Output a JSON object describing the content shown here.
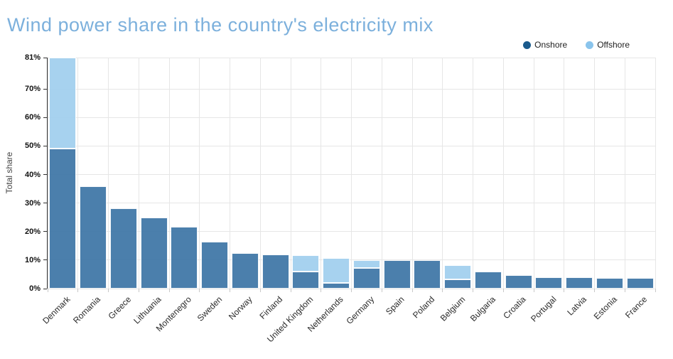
{
  "page": {
    "title": "Wind power share in the country's electricity mix"
  },
  "colors": {
    "title_text": "#7cb0dc",
    "grid_line": "#e6e6e6",
    "y_axis_line": "#333333",
    "x_axis_line": "#c9c9c9",
    "axis_text": "#111111"
  },
  "chart_data": {
    "type": "bar",
    "stacked": true,
    "title": "Wind power share in the country's electricity mix",
    "xlabel": "",
    "ylabel": "Total share",
    "ylim": [
      0,
      81
    ],
    "grid": true,
    "legend_position": "top-right",
    "categories": [
      "Denmark",
      "Romania",
      "Greece",
      "Lithuania",
      "Montenegro",
      "Sweden",
      "Norway",
      "Finland",
      "United Kingdom",
      "Netherlands",
      "Germany",
      "Spain",
      "Poland",
      "Belgium",
      "Bulgaria",
      "Croatia",
      "Portugal",
      "Latvia",
      "Estonia",
      "France"
    ],
    "series": [
      {
        "name": "Onshore",
        "legend_color": "#1a5a8c",
        "bar_fill": "#4279a8",
        "values": [
          49,
          35.8,
          28.2,
          24.9,
          21.7,
          16.4,
          12.4,
          12.0,
          6.0,
          2.0,
          7.3,
          10.0,
          9.9,
          3.3,
          6.0,
          4.8,
          4.0,
          4.0,
          3.8,
          3.7
        ]
      },
      {
        "name": "Offshore",
        "legend_color": "#8ac4ec",
        "bar_fill": "#a3d0ef",
        "values": [
          32,
          0,
          0,
          0,
          0,
          0,
          0,
          0,
          5.6,
          8.6,
          2.6,
          0,
          0,
          5.0,
          0,
          0,
          0,
          0,
          0,
          0
        ]
      }
    ],
    "yticks": [
      {
        "value": 0,
        "label": "0%"
      },
      {
        "value": 10,
        "label": "10%"
      },
      {
        "value": 20,
        "label": "20%"
      },
      {
        "value": 30,
        "label": "30%"
      },
      {
        "value": 40,
        "label": "40%"
      },
      {
        "value": 50,
        "label": "50%"
      },
      {
        "value": 60,
        "label": "60%"
      },
      {
        "value": 70,
        "label": "70%"
      },
      {
        "value": 81,
        "label": "81%"
      }
    ]
  }
}
